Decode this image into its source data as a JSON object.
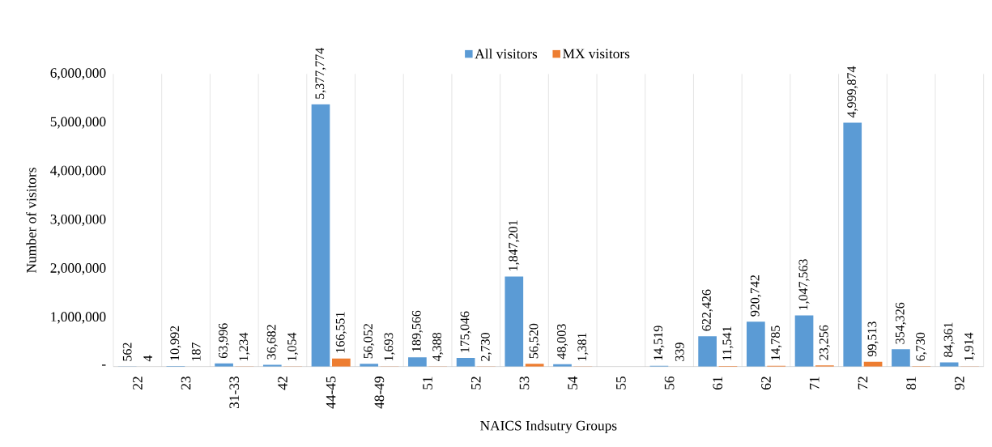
{
  "chart_data": {
    "type": "bar",
    "xlabel": "NAICS Indsutry Groups",
    "ylabel": "Number of visitors",
    "categories": [
      "22",
      "23",
      "31-33",
      "42",
      "44-45",
      "48-49",
      "51",
      "52",
      "53",
      "54",
      "55",
      "56",
      "61",
      "62",
      "71",
      "72",
      "81",
      "92"
    ],
    "series": [
      {
        "name": "All visitors",
        "color": "#5b9bd5",
        "values": [
          562,
          10992,
          63996,
          36682,
          5377774,
          56052,
          189566,
          175046,
          1847201,
          48003,
          null,
          14519,
          622426,
          920742,
          1047563,
          4999874,
          354326,
          84361
        ],
        "value_labels": [
          "562",
          "10,992",
          "63,996",
          "36,682",
          "5,377,774",
          "56,052",
          "189,566",
          "175,046",
          "1,847,201",
          "48,003",
          null,
          "14,519",
          "622,426",
          "920,742",
          "1,047,563",
          "4,999,874",
          "354,326",
          "84,361"
        ]
      },
      {
        "name": "MX visitors",
        "color": "#ed7d31",
        "values": [
          4,
          187,
          1234,
          1054,
          166551,
          1693,
          4388,
          2730,
          56520,
          1381,
          null,
          339,
          11541,
          14785,
          23256,
          99513,
          6730,
          1914
        ],
        "value_labels": [
          "4",
          "187",
          "1,234",
          "1,054",
          "166,551",
          "1,693",
          "4,388",
          "2,730",
          "56,520",
          "1,381",
          null,
          "339",
          "11,541",
          "14,785",
          "23,256",
          "99,513",
          "6,730",
          "1,914"
        ]
      }
    ],
    "ylim": [
      0,
      6000000
    ],
    "yticks": [
      {
        "value": 0,
        "label": "-"
      },
      {
        "value": 1000000,
        "label": "1,000,000"
      },
      {
        "value": 2000000,
        "label": "2,000,000"
      },
      {
        "value": 3000000,
        "label": "3,000,000"
      },
      {
        "value": 4000000,
        "label": "4,000,000"
      },
      {
        "value": 5000000,
        "label": "5,000,000"
      },
      {
        "value": 6000000,
        "label": "6,000,000"
      }
    ],
    "grid": "x",
    "legend": "top"
  }
}
